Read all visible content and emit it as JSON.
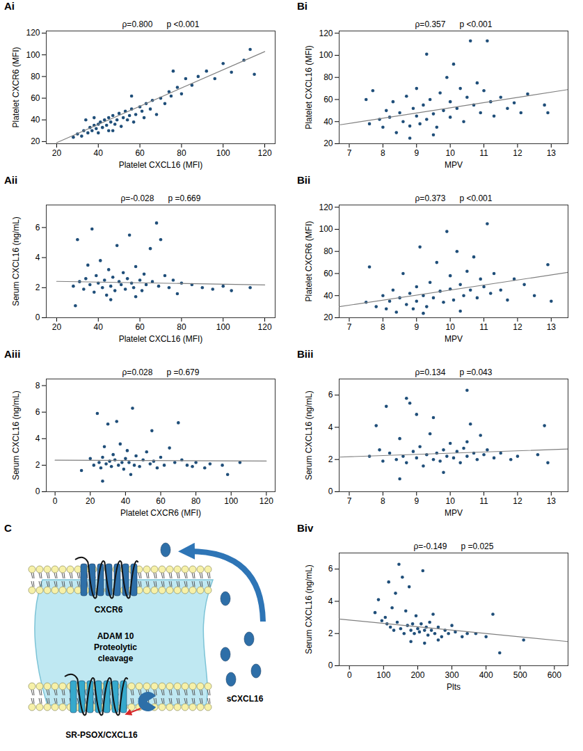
{
  "chart_data": [
    {
      "panel": "Ai",
      "type": "scatter",
      "annotation": [
        "ρ=0.800",
        "p <0.001"
      ],
      "x_label": "Platelet CXCL16 (MFI)",
      "y_label": "Platelet CXCR6 (MFI)",
      "x": [
        28,
        30,
        32,
        33,
        35,
        36,
        37,
        38,
        39,
        40,
        40,
        41,
        42,
        43,
        44,
        45,
        45,
        46,
        47,
        48,
        49,
        50,
        51,
        52,
        53,
        54,
        55,
        56,
        57,
        58,
        60,
        61,
        62,
        63,
        65,
        66,
        68,
        70,
        72,
        74,
        75,
        76,
        78,
        80,
        82,
        85,
        88,
        92,
        96,
        100,
        104,
        110,
        113,
        115,
        34,
        56,
        47,
        38
      ],
      "values": [
        24,
        27,
        25,
        30,
        28,
        33,
        30,
        35,
        32,
        28,
        36,
        38,
        33,
        40,
        35,
        30,
        42,
        38,
        44,
        36,
        40,
        46,
        34,
        42,
        48,
        40,
        44,
        50,
        38,
        45,
        52,
        48,
        42,
        55,
        50,
        58,
        45,
        60,
        55,
        66,
        62,
        85,
        70,
        64,
        78,
        72,
        80,
        85,
        78,
        92,
        84,
        95,
        105,
        82,
        40,
        62,
        30,
        42
      ],
      "color": "#1f4e79",
      "marker": "circle",
      "fit_line": {
        "x": [
          20,
          120
        ],
        "y": [
          19,
          103
        ],
        "color": "#7f7f7f"
      },
      "xlim": [
        15,
        125
      ],
      "xticks": [
        20,
        40,
        60,
        80,
        100,
        120
      ],
      "ylim": [
        18,
        122
      ],
      "yticks": [
        20,
        40,
        60,
        80,
        100,
        120
      ],
      "grid": false
    },
    {
      "panel": "Aii",
      "type": "scatter",
      "annotation": [
        "ρ=-0.028",
        "p =0.669"
      ],
      "x_label": "Platelet CXCL16 (MFI)",
      "y_label": "Serum CXCL16 (ng/mL)",
      "x": [
        28,
        30,
        31,
        33,
        34,
        35,
        36,
        37,
        38,
        39,
        40,
        41,
        42,
        43,
        44,
        45,
        46,
        47,
        48,
        49,
        50,
        51,
        52,
        53,
        54,
        55,
        56,
        57,
        58,
        60,
        61,
        62,
        63,
        65,
        66,
        68,
        69,
        70,
        72,
        74,
        76,
        78,
        80,
        85,
        90,
        95,
        100,
        104,
        113,
        29,
        46,
        58
      ],
      "values": [
        2.1,
        5.2,
        2.4,
        1.9,
        2.6,
        3.5,
        2.2,
        5.9,
        1.7,
        2.8,
        2.3,
        3.8,
        2.0,
        2.5,
        1.5,
        3.2,
        2.1,
        2.7,
        1.8,
        4.8,
        2.4,
        2.2,
        3.0,
        1.9,
        2.6,
        5.5,
        2.3,
        2.0,
        3.4,
        2.5,
        1.8,
        2.9,
        2.2,
        4.6,
        2.4,
        6.3,
        2.1,
        5.2,
        2.8,
        2.0,
        2.5,
        1.6,
        2.3,
        2.2,
        2.0,
        1.9,
        2.1,
        1.8,
        2.0,
        0.8,
        1.2,
        1.4
      ],
      "color": "#1f4e79",
      "marker": "circle",
      "fit_line": {
        "x": [
          20,
          120
        ],
        "y": [
          2.42,
          2.18
        ],
        "color": "#7f7f7f"
      },
      "xlim": [
        15,
        125
      ],
      "xticks": [
        20,
        40,
        60,
        80,
        100,
        120
      ],
      "ylim": [
        0,
        7.5
      ],
      "yticks": [
        0,
        2,
        4,
        6
      ],
      "grid": false
    },
    {
      "panel": "Aiii",
      "type": "scatter",
      "annotation": [
        "ρ=0.028",
        "p =0.679"
      ],
      "x_label": "Platelet CXCR6 (MFI)",
      "y_label": "Serum CXCL16 (ng/mL)",
      "x": [
        15,
        20,
        22,
        24,
        25,
        26,
        27,
        28,
        29,
        30,
        31,
        32,
        33,
        34,
        35,
        36,
        37,
        38,
        39,
        40,
        41,
        42,
        44,
        45,
        46,
        48,
        50,
        52,
        54,
        55,
        56,
        58,
        60,
        62,
        65,
        68,
        70,
        72,
        75,
        78,
        80,
        85,
        88,
        95,
        98,
        105,
        27,
        43
      ],
      "values": [
        1.6,
        2.5,
        2.0,
        5.9,
        2.2,
        1.8,
        2.6,
        3.4,
        2.1,
        5.1,
        2.3,
        1.9,
        2.8,
        2.4,
        5.3,
        2.0,
        3.6,
        2.2,
        1.7,
        2.5,
        3.1,
        2.2,
        6.3,
        2.0,
        2.7,
        1.9,
        2.4,
        3.0,
        2.1,
        4.6,
        2.3,
        1.8,
        2.6,
        2.0,
        3.3,
        2.2,
        5.2,
        2.4,
        2.0,
        1.9,
        2.2,
        1.8,
        2.1,
        2.0,
        1.3,
        2.2,
        0.8,
        1.3
      ],
      "color": "#1f4e79",
      "marker": "circle",
      "fit_line": {
        "x": [
          0,
          120
        ],
        "y": [
          2.38,
          2.32
        ],
        "color": "#7f7f7f"
      },
      "xlim": [
        -5,
        125
      ],
      "xticks": [
        0,
        20,
        40,
        60,
        80,
        100,
        120
      ],
      "ylim": [
        0,
        8.5
      ],
      "yticks": [
        0,
        2,
        4,
        6,
        8
      ],
      "grid": false
    },
    {
      "panel": "Bi",
      "type": "scatter",
      "annotation": [
        "ρ=0.357",
        "p <0.001"
      ],
      "x_label": "MPV",
      "y_label": "Platelet CXCL16 (MFI)",
      "x": [
        7.5,
        7.6,
        7.7,
        7.9,
        8.0,
        8.1,
        8.2,
        8.3,
        8.4,
        8.5,
        8.6,
        8.7,
        8.8,
        8.9,
        9.0,
        9.0,
        9.1,
        9.2,
        9.3,
        9.3,
        9.4,
        9.5,
        9.6,
        9.7,
        9.8,
        9.9,
        10.0,
        10.0,
        10.1,
        10.2,
        10.3,
        10.4,
        10.5,
        10.6,
        10.7,
        10.8,
        10.9,
        11.0,
        11.1,
        11.2,
        11.3,
        11.5,
        11.7,
        11.9,
        12.1,
        12.3,
        12.8,
        12.9,
        9.5,
        8.8
      ],
      "values": [
        60,
        38,
        68,
        42,
        35,
        50,
        44,
        58,
        30,
        48,
        40,
        63,
        36,
        52,
        45,
        70,
        38,
        55,
        101,
        42,
        60,
        47,
        35,
        66,
        50,
        80,
        44,
        58,
        92,
        52,
        70,
        40,
        62,
        113,
        55,
        75,
        48,
        68,
        113,
        58,
        45,
        62,
        52,
        57,
        48,
        65,
        55,
        48,
        28,
        25
      ],
      "color": "#1f4e79",
      "marker": "circle",
      "fit_line": {
        "x": [
          6.7,
          13.5
        ],
        "y": [
          37,
          69
        ],
        "color": "#7f7f7f"
      },
      "xlim": [
        6.7,
        13.5
      ],
      "xticks": [
        7,
        8,
        9,
        10,
        11,
        12,
        13
      ],
      "ylim": [
        20,
        122
      ],
      "yticks": [
        20,
        40,
        60,
        80,
        100,
        120
      ],
      "grid": false
    },
    {
      "panel": "Bii",
      "type": "scatter",
      "annotation": [
        "ρ=0.373",
        "p <0.001"
      ],
      "x_label": "MPV",
      "y_label": "Platelet CXCR6 (MFI)",
      "x": [
        7.5,
        7.6,
        7.8,
        8.0,
        8.1,
        8.2,
        8.3,
        8.4,
        8.5,
        8.6,
        8.7,
        8.8,
        8.9,
        9.0,
        9.0,
        9.1,
        9.2,
        9.3,
        9.4,
        9.5,
        9.6,
        9.7,
        9.8,
        9.9,
        10.0,
        10.0,
        10.1,
        10.2,
        10.3,
        10.4,
        10.5,
        10.6,
        10.7,
        10.8,
        10.9,
        11.0,
        11.1,
        11.2,
        11.3,
        11.5,
        11.7,
        11.9,
        12.2,
        12.5,
        12.9,
        13.0,
        9.2,
        10.3
      ],
      "values": [
        34,
        66,
        30,
        40,
        28,
        35,
        45,
        25,
        38,
        60,
        32,
        42,
        28,
        48,
        35,
        84,
        40,
        30,
        52,
        38,
        70,
        44,
        34,
        98,
        46,
        58,
        36,
        80,
        50,
        40,
        62,
        45,
        75,
        38,
        55,
        48,
        105,
        42,
        60,
        45,
        36,
        55,
        50,
        40,
        68,
        35,
        24,
        26
      ],
      "color": "#1f4e79",
      "marker": "circle",
      "fit_line": {
        "x": [
          6.7,
          13.5
        ],
        "y": [
          30,
          61
        ],
        "color": "#7f7f7f"
      },
      "xlim": [
        6.7,
        13.5
      ],
      "xticks": [
        7,
        8,
        9,
        10,
        11,
        12,
        13
      ],
      "ylim": [
        20,
        122
      ],
      "yticks": [
        20,
        40,
        60,
        80,
        100,
        120
      ],
      "grid": false
    },
    {
      "panel": "Biii",
      "type": "scatter",
      "annotation": [
        "ρ=0.134",
        "p =0.043"
      ],
      "x_label": "MPV",
      "y_label": "Serum CXCL16 (ng/mL)",
      "x": [
        7.6,
        7.8,
        7.9,
        8.0,
        8.1,
        8.2,
        8.4,
        8.5,
        8.6,
        8.7,
        8.7,
        8.8,
        8.9,
        9.0,
        9.0,
        9.1,
        9.2,
        9.3,
        9.4,
        9.5,
        9.5,
        9.6,
        9.7,
        9.8,
        9.9,
        10.0,
        10.1,
        10.2,
        10.3,
        10.4,
        10.5,
        10.5,
        10.6,
        10.7,
        10.8,
        10.9,
        11.0,
        11.1,
        11.3,
        11.5,
        11.8,
        12.0,
        12.6,
        12.8,
        12.9,
        8.5,
        9.8,
        10.5
      ],
      "values": [
        2.2,
        4.1,
        2.6,
        1.9,
        5.3,
        2.4,
        2.0,
        3.3,
        2.2,
        5.8,
        1.8,
        5.5,
        2.5,
        2.1,
        4.8,
        2.8,
        1.6,
        2.3,
        3.6,
        2.0,
        4.6,
        2.4,
        1.9,
        2.6,
        2.2,
        3.0,
        2.1,
        2.5,
        1.8,
        2.7,
        6.3,
        2.2,
        4.2,
        2.4,
        2.0,
        3.5,
        2.3,
        2.6,
        2.1,
        2.4,
        2.0,
        2.2,
        2.3,
        4.1,
        1.8,
        0.8,
        1.2,
        3.1
      ],
      "color": "#1f4e79",
      "marker": "circle",
      "fit_line": {
        "x": [
          6.7,
          13.5
        ],
        "y": [
          2.15,
          2.65
        ],
        "color": "#7f7f7f"
      },
      "xlim": [
        6.7,
        13.5
      ],
      "xticks": [
        7,
        8,
        9,
        10,
        11,
        12,
        13
      ],
      "ylim": [
        0,
        7
      ],
      "yticks": [
        0,
        2,
        4,
        6
      ],
      "grid": false
    },
    {
      "panel": "Biv",
      "type": "scatter",
      "annotation": [
        "ρ=-0.149",
        "p =0.025"
      ],
      "x_label": "Plts",
      "y_label": "Serum CXCL16 (ng/mL)",
      "x": [
        75,
        85,
        95,
        105,
        110,
        115,
        120,
        125,
        130,
        135,
        140,
        145,
        150,
        155,
        160,
        165,
        170,
        175,
        180,
        185,
        190,
        195,
        200,
        205,
        210,
        215,
        220,
        225,
        230,
        235,
        240,
        245,
        250,
        260,
        270,
        280,
        290,
        300,
        310,
        330,
        345,
        370,
        400,
        420,
        440,
        510,
        220,
        180,
        260
      ],
      "values": [
        3.3,
        4.1,
        2.8,
        3.0,
        2.6,
        5.2,
        2.4,
        3.6,
        2.2,
        4.5,
        2.7,
        6.3,
        2.3,
        5.5,
        2.0,
        3.4,
        2.5,
        4.9,
        2.2,
        2.6,
        2.0,
        3.1,
        2.3,
        2.1,
        2.6,
        5.9,
        2.2,
        2.4,
        1.9,
        2.7,
        2.2,
        3.2,
        2.0,
        2.4,
        1.8,
        2.2,
        2.0,
        2.5,
        2.1,
        1.8,
        2.0,
        2.0,
        1.8,
        3.2,
        0.8,
        1.6,
        1.4,
        1.5,
        1.6
      ],
      "color": "#1f4e79",
      "marker": "circle",
      "fit_line": {
        "x": [
          -30,
          640
        ],
        "y": [
          2.9,
          1.5
        ],
        "color": "#7f7f7f"
      },
      "xlim": [
        -30,
        640
      ],
      "xticks": [
        0,
        100,
        200,
        300,
        400,
        500,
        600
      ],
      "ylim": [
        0,
        7
      ],
      "yticks": [
        0,
        2,
        4,
        6
      ],
      "grid": false
    }
  ],
  "diagram": {
    "panel": "C",
    "labels": {
      "receptor": "CXCR6",
      "enzyme": [
        "ADAM 10",
        "Proteolytic",
        "cleavage"
      ],
      "soluble": "sCXCL16",
      "membrane_form": "SR-PSOX/CXCL16"
    }
  }
}
